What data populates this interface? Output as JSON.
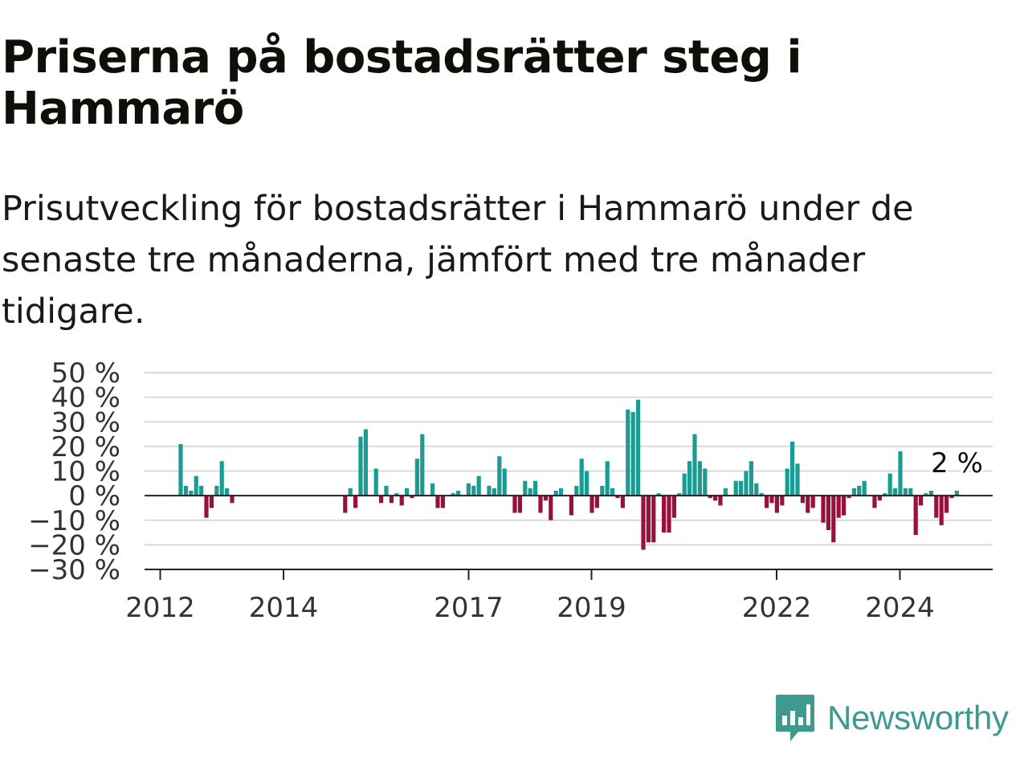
{
  "title": "Priserna på bostadsrätter steg i Hammarö",
  "subtitle": "Prisutveckling för bostadsrätter i Hammarö under de senaste tre månaderna, jämfört med tre månader tidigare.",
  "brand": {
    "name": "Newsworthy",
    "color": "#3c9a8f",
    "icon": "newsworthy-logo-icon"
  },
  "colors": {
    "positive": "#1a9c94",
    "negative": "#990f3d",
    "grid": "#d9d9d9",
    "zero_line": "#222222"
  },
  "chart_data": {
    "type": "bar",
    "unit": "%",
    "ylim": [
      -30,
      50
    ],
    "y_ticks": [
      50,
      40,
      30,
      20,
      10,
      0,
      -10,
      -20,
      -30
    ],
    "y_tick_labels": [
      "50 %",
      "40 %",
      "30 %",
      "20 %",
      "10 %",
      "0 %",
      "−10 %",
      "−20 %",
      "−30 %"
    ],
    "x_ticks": [
      "2012",
      "2014",
      "2017",
      "2019",
      "2022",
      "2024"
    ],
    "grid": true,
    "last_label": "2 %",
    "series": [
      {
        "values": [
          {
            "x": "2012-05",
            "y": 21
          },
          {
            "x": "2012-06",
            "y": 4
          },
          {
            "x": "2012-07",
            "y": 2
          },
          {
            "x": "2012-08",
            "y": 8
          },
          {
            "x": "2012-09",
            "y": 4
          },
          {
            "x": "2012-10",
            "y": -9
          },
          {
            "x": "2012-11",
            "y": -5
          },
          {
            "x": "2012-12",
            "y": 4
          },
          {
            "x": "2013-01",
            "y": 14
          },
          {
            "x": "2013-02",
            "y": 3
          },
          {
            "x": "2013-03",
            "y": -3
          },
          {
            "x": "2015-01",
            "y": -7
          },
          {
            "x": "2015-02",
            "y": 3
          },
          {
            "x": "2015-03",
            "y": -5
          },
          {
            "x": "2015-04",
            "y": 24
          },
          {
            "x": "2015-05",
            "y": 27
          },
          {
            "x": "2015-07",
            "y": 11
          },
          {
            "x": "2015-08",
            "y": -3
          },
          {
            "x": "2015-09",
            "y": 4
          },
          {
            "x": "2015-10",
            "y": -3
          },
          {
            "x": "2015-11",
            "y": 1
          },
          {
            "x": "2015-12",
            "y": -4
          },
          {
            "x": "2016-01",
            "y": 3
          },
          {
            "x": "2016-02",
            "y": -1
          },
          {
            "x": "2016-03",
            "y": 15
          },
          {
            "x": "2016-04",
            "y": 25
          },
          {
            "x": "2016-06",
            "y": 5
          },
          {
            "x": "2016-07",
            "y": -5
          },
          {
            "x": "2016-08",
            "y": -5
          },
          {
            "x": "2016-10",
            "y": 1
          },
          {
            "x": "2016-11",
            "y": 2
          },
          {
            "x": "2017-01",
            "y": 5
          },
          {
            "x": "2017-02",
            "y": 4
          },
          {
            "x": "2017-03",
            "y": 8
          },
          {
            "x": "2017-05",
            "y": 4
          },
          {
            "x": "2017-06",
            "y": 3
          },
          {
            "x": "2017-07",
            "y": 16
          },
          {
            "x": "2017-08",
            "y": 11
          },
          {
            "x": "2017-10",
            "y": -7
          },
          {
            "x": "2017-11",
            "y": -7
          },
          {
            "x": "2017-12",
            "y": 6
          },
          {
            "x": "2018-01",
            "y": 3
          },
          {
            "x": "2018-02",
            "y": 6
          },
          {
            "x": "2018-03",
            "y": -7
          },
          {
            "x": "2018-04",
            "y": -2
          },
          {
            "x": "2018-05",
            "y": -10
          },
          {
            "x": "2018-06",
            "y": 2
          },
          {
            "x": "2018-07",
            "y": 3
          },
          {
            "x": "2018-09",
            "y": -8
          },
          {
            "x": "2018-10",
            "y": 4
          },
          {
            "x": "2018-11",
            "y": 15
          },
          {
            "x": "2018-12",
            "y": 10
          },
          {
            "x": "2019-01",
            "y": -7
          },
          {
            "x": "2019-02",
            "y": -5
          },
          {
            "x": "2019-03",
            "y": 4
          },
          {
            "x": "2019-04",
            "y": 14
          },
          {
            "x": "2019-05",
            "y": 3
          },
          {
            "x": "2019-06",
            "y": -1
          },
          {
            "x": "2019-07",
            "y": -5
          },
          {
            "x": "2019-08",
            "y": 35
          },
          {
            "x": "2019-09",
            "y": 34
          },
          {
            "x": "2019-10",
            "y": 39
          },
          {
            "x": "2019-11",
            "y": -22
          },
          {
            "x": "2019-12",
            "y": -19
          },
          {
            "x": "2020-01",
            "y": -19
          },
          {
            "x": "2020-02",
            "y": 1
          },
          {
            "x": "2020-03",
            "y": -15
          },
          {
            "x": "2020-04",
            "y": -15
          },
          {
            "x": "2020-05",
            "y": -9
          },
          {
            "x": "2020-06",
            "y": 1
          },
          {
            "x": "2020-07",
            "y": 9
          },
          {
            "x": "2020-08",
            "y": 14
          },
          {
            "x": "2020-09",
            "y": 25
          },
          {
            "x": "2020-10",
            "y": 14
          },
          {
            "x": "2020-11",
            "y": 11
          },
          {
            "x": "2020-12",
            "y": -1
          },
          {
            "x": "2021-01",
            "y": -2
          },
          {
            "x": "2021-02",
            "y": -4
          },
          {
            "x": "2021-03",
            "y": 3
          },
          {
            "x": "2021-05",
            "y": 6
          },
          {
            "x": "2021-06",
            "y": 6
          },
          {
            "x": "2021-07",
            "y": 10
          },
          {
            "x": "2021-08",
            "y": 14
          },
          {
            "x": "2021-09",
            "y": 5
          },
          {
            "x": "2021-10",
            "y": 1
          },
          {
            "x": "2021-11",
            "y": -5
          },
          {
            "x": "2021-12",
            "y": -3
          },
          {
            "x": "2022-01",
            "y": -7
          },
          {
            "x": "2022-02",
            "y": -4
          },
          {
            "x": "2022-03",
            "y": 11
          },
          {
            "x": "2022-04",
            "y": 22
          },
          {
            "x": "2022-05",
            "y": 13
          },
          {
            "x": "2022-06",
            "y": -3
          },
          {
            "x": "2022-07",
            "y": -7
          },
          {
            "x": "2022-08",
            "y": -5
          },
          {
            "x": "2022-10",
            "y": -11
          },
          {
            "x": "2022-11",
            "y": -14
          },
          {
            "x": "2022-12",
            "y": -19
          },
          {
            "x": "2023-01",
            "y": -9
          },
          {
            "x": "2023-02",
            "y": -8
          },
          {
            "x": "2023-03",
            "y": -1
          },
          {
            "x": "2023-04",
            "y": 3
          },
          {
            "x": "2023-05",
            "y": 4
          },
          {
            "x": "2023-06",
            "y": 6
          },
          {
            "x": "2023-08",
            "y": -5
          },
          {
            "x": "2023-09",
            "y": -2
          },
          {
            "x": "2023-10",
            "y": 1
          },
          {
            "x": "2023-11",
            "y": 9
          },
          {
            "x": "2023-12",
            "y": 3
          },
          {
            "x": "2024-01",
            "y": 18
          },
          {
            "x": "2024-02",
            "y": 3
          },
          {
            "x": "2024-03",
            "y": 3
          },
          {
            "x": "2024-04",
            "y": -16
          },
          {
            "x": "2024-05",
            "y": -4
          },
          {
            "x": "2024-06",
            "y": 1
          },
          {
            "x": "2024-07",
            "y": 2
          },
          {
            "x": "2024-08",
            "y": -9
          },
          {
            "x": "2024-09",
            "y": -12
          },
          {
            "x": "2024-10",
            "y": -7
          },
          {
            "x": "2024-11",
            "y": -1
          },
          {
            "x": "2024-12",
            "y": 2
          }
        ]
      }
    ]
  }
}
